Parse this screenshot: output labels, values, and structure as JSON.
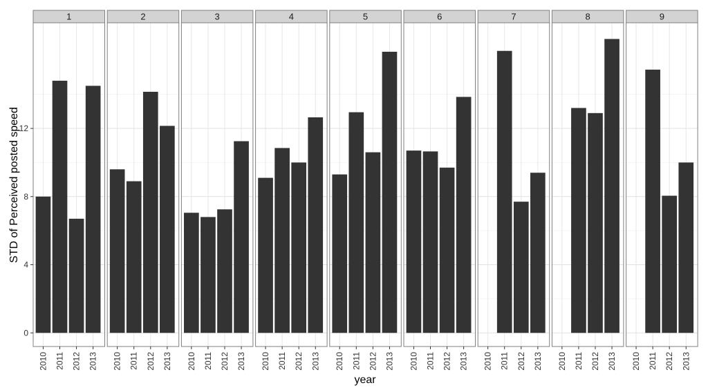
{
  "chart_data": {
    "type": "bar",
    "xlabel": "year",
    "ylabel": "STD of Perceived posted speed",
    "ylim": [
      -0.8,
      18.2
    ],
    "yticks": [
      0,
      4,
      8,
      12
    ],
    "ytick_labels": [
      "0",
      "4",
      "8",
      "12"
    ],
    "categories": [
      "2010",
      "2011",
      "2012",
      "2013"
    ],
    "grid": true,
    "bar_color": "#333333",
    "panels": [
      {
        "label": "1",
        "values": [
          8.0,
          14.8,
          6.7,
          14.5
        ]
      },
      {
        "label": "2",
        "values": [
          9.6,
          8.9,
          14.15,
          12.15
        ]
      },
      {
        "label": "3",
        "values": [
          7.05,
          6.8,
          7.25,
          11.25
        ]
      },
      {
        "label": "4",
        "values": [
          9.1,
          10.85,
          10.0,
          12.65
        ]
      },
      {
        "label": "5",
        "values": [
          9.3,
          12.95,
          10.6,
          16.5
        ]
      },
      {
        "label": "6",
        "values": [
          10.7,
          10.65,
          9.7,
          13.85
        ]
      },
      {
        "label": "7",
        "values": [
          null,
          16.55,
          7.7,
          9.4
        ]
      },
      {
        "label": "8",
        "values": [
          null,
          13.2,
          12.9,
          17.25
        ]
      },
      {
        "label": "9",
        "values": [
          null,
          15.45,
          8.05,
          10.0
        ]
      }
    ]
  }
}
